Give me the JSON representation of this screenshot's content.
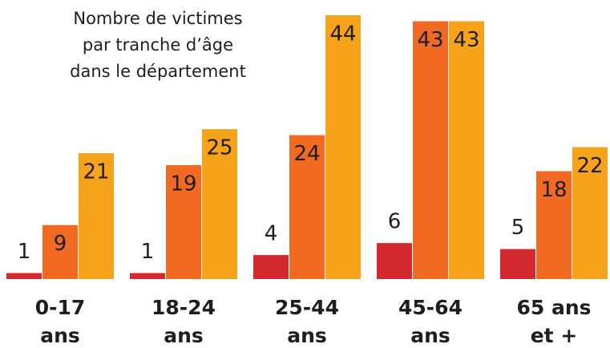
{
  "chart_data": {
    "type": "bar",
    "title": [
      "Nombre de victimes",
      "par tranche d’âge",
      "dans le département"
    ],
    "categories": [
      [
        "0-17",
        "ans"
      ],
      [
        "18-24",
        "ans"
      ],
      [
        "25-44",
        "ans"
      ],
      [
        "45-64",
        "ans"
      ],
      [
        "65 ans",
        "et +"
      ]
    ],
    "series": [
      {
        "color": "#d42a2f",
        "values": [
          1,
          1,
          4,
          6,
          5
        ]
      },
      {
        "color": "#f26a21",
        "values": [
          9,
          19,
          24,
          43,
          18
        ]
      },
      {
        "color": "#f7a21b",
        "values": [
          21,
          25,
          44,
          43,
          22
        ]
      }
    ]
  }
}
